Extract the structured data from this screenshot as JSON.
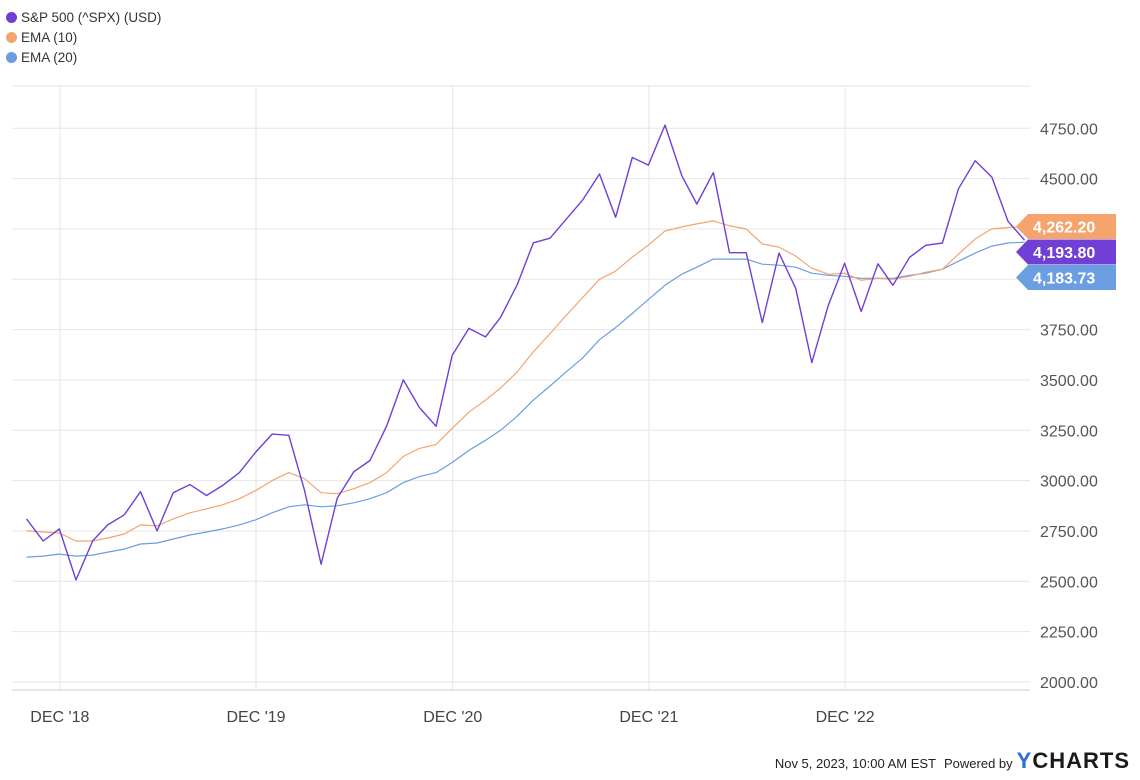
{
  "chart_data": {
    "type": "line",
    "xlabel": "",
    "ylabel": "",
    "ylim": [
      1960,
      4960
    ],
    "y_ticks": [
      2000,
      2250,
      2500,
      2750,
      3000,
      3250,
      3500,
      3750,
      4000,
      4250,
      4500,
      4750
    ],
    "y_tick_labels": [
      "2000.00",
      "2250.00",
      "2500.00",
      "2750.00",
      "3000.00",
      "3250.00",
      "3500.00",
      "3750.00",
      "",
      "",
      "4500.00",
      "4750.00"
    ],
    "x_ticks": [
      "Dec '18",
      "Dec '19",
      "Dec '20",
      "Dec '21",
      "Dec '22"
    ],
    "x_tick_labels": [
      "DEC '18",
      "DEC '19",
      "DEC '20",
      "DEC '21",
      "DEC '22"
    ],
    "x_dates": [
      "2018-09-30",
      "2018-10-31",
      "2018-11-30",
      "2018-12-31",
      "2019-01-31",
      "2019-02-28",
      "2019-03-31",
      "2019-04-30",
      "2019-05-31",
      "2019-06-30",
      "2019-07-31",
      "2019-08-31",
      "2019-09-30",
      "2019-10-31",
      "2019-11-30",
      "2019-12-31",
      "2020-01-31",
      "2020-02-29",
      "2020-03-31",
      "2020-04-30",
      "2020-05-31",
      "2020-06-30",
      "2020-07-31",
      "2020-08-31",
      "2020-09-30",
      "2020-10-31",
      "2020-11-30",
      "2020-12-31",
      "2021-01-31",
      "2021-02-28",
      "2021-03-31",
      "2021-04-30",
      "2021-05-31",
      "2021-06-30",
      "2021-07-31",
      "2021-08-31",
      "2021-09-30",
      "2021-10-31",
      "2021-11-30",
      "2021-12-31",
      "2022-01-31",
      "2022-02-28",
      "2022-03-31",
      "2022-04-30",
      "2022-05-31",
      "2022-06-30",
      "2022-07-31",
      "2022-08-31",
      "2022-09-30",
      "2022-10-31",
      "2022-11-30",
      "2022-12-31",
      "2023-01-31",
      "2023-02-28",
      "2023-03-31",
      "2023-04-30",
      "2023-05-31",
      "2023-06-30",
      "2023-07-31",
      "2023-08-31",
      "2023-09-30",
      "2023-10-31"
    ],
    "series": [
      {
        "name": "S&P 500 (^SPX) (USD)",
        "color": "#6f3fd6",
        "values": [
          2810,
          2700,
          2760,
          2507,
          2700,
          2780,
          2830,
          2945,
          2750,
          2940,
          2980,
          2926,
          2976,
          3040,
          3140,
          3231,
          3225,
          2954,
          2585,
          2912,
          3044,
          3100,
          3271,
          3500,
          3363,
          3270,
          3622,
          3756,
          3714,
          3811,
          3973,
          4181,
          4204,
          4298,
          4395,
          4523,
          4308,
          4605,
          4567,
          4766,
          4516,
          4374,
          4530,
          4132,
          4132,
          3785,
          4130,
          3955,
          3586,
          3872,
          4080,
          3840,
          4077,
          3970,
          4109,
          4169,
          4180,
          4450,
          4589,
          4508,
          4288,
          4194
        ]
      },
      {
        "name": "EMA (10)",
        "color": "#f5a46e",
        "values": [
          2750,
          2745,
          2740,
          2700,
          2700,
          2715,
          2735,
          2780,
          2775,
          2810,
          2840,
          2860,
          2880,
          2910,
          2950,
          3000,
          3040,
          3010,
          2940,
          2935,
          2960,
          2990,
          3040,
          3120,
          3160,
          3180,
          3260,
          3340,
          3400,
          3460,
          3540,
          3640,
          3730,
          3820,
          3910,
          4000,
          4040,
          4110,
          4170,
          4240,
          4260,
          4275,
          4290,
          4265,
          4250,
          4175,
          4160,
          4115,
          4055,
          4025,
          4030,
          3995,
          4005,
          4000,
          4015,
          4035,
          4050,
          4125,
          4200,
          4250,
          4257,
          4262
        ]
      },
      {
        "name": "EMA (20)",
        "color": "#6a9ee0",
        "values": [
          2620,
          2625,
          2635,
          2625,
          2630,
          2645,
          2660,
          2685,
          2690,
          2710,
          2730,
          2745,
          2760,
          2780,
          2805,
          2840,
          2870,
          2880,
          2870,
          2875,
          2890,
          2910,
          2940,
          2990,
          3020,
          3040,
          3090,
          3150,
          3200,
          3250,
          3320,
          3400,
          3470,
          3540,
          3610,
          3700,
          3760,
          3830,
          3900,
          3970,
          4025,
          4060,
          4100,
          4100,
          4100,
          4075,
          4070,
          4060,
          4030,
          4020,
          4015,
          4005,
          4005,
          4005,
          4020,
          4030,
          4050,
          4090,
          4130,
          4165,
          4180,
          4184
        ]
      }
    ],
    "last_value_labels": [
      {
        "series": "EMA (10)",
        "value": 4262.2,
        "text": "4,262.20",
        "color": "#f5a46e"
      },
      {
        "series": "S&P 500 (^SPX) (USD)",
        "value": 4193.8,
        "text": "4,193.80",
        "color": "#6f3fd6"
      },
      {
        "series": "EMA (20)",
        "value": 4183.73,
        "text": "4,183.73",
        "color": "#6a9ee0"
      }
    ],
    "grid": true,
    "legend_position": "top-left"
  },
  "footer": {
    "timestamp": "Nov 5, 2023, 10:00 AM EST",
    "powered_by": "Powered by",
    "brand_y": "Y",
    "brand_rest": "CHARTS"
  }
}
